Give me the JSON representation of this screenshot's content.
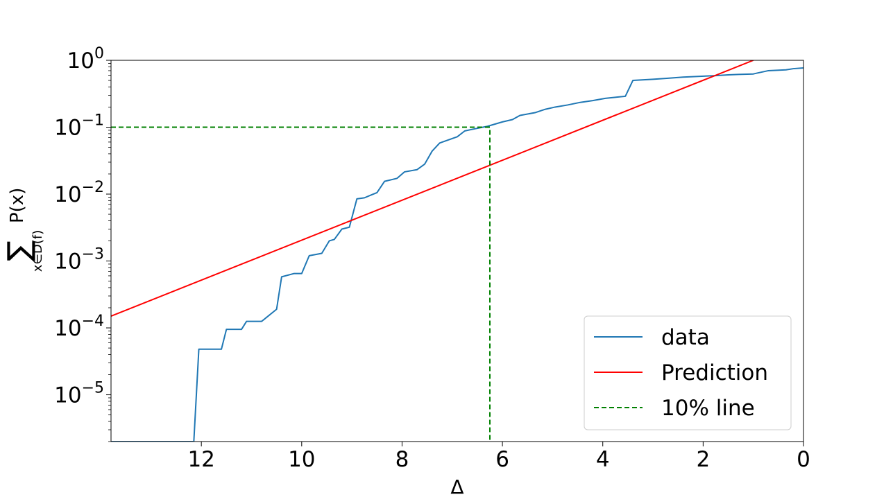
{
  "chart_data": {
    "type": "line",
    "xlabel": "Δ",
    "ylabel": {
      "sum_symbol": "∑",
      "subscript": "x∈D(f)",
      "term": "P(x)"
    },
    "xlim": [
      13.8,
      0
    ],
    "ylim": [
      2e-06,
      1
    ],
    "y_scale": "log",
    "x_ticks": [
      12,
      10,
      8,
      6,
      4,
      2,
      0
    ],
    "y_ticks": [
      {
        "value": 1,
        "base": "10",
        "exp": "0"
      },
      {
        "value": 0.1,
        "base": "10",
        "exp": "−1"
      },
      {
        "value": 0.01,
        "base": "10",
        "exp": "−2"
      },
      {
        "value": 0.001,
        "base": "10",
        "exp": "−3"
      },
      {
        "value": 0.0001,
        "base": "10",
        "exp": "−4"
      },
      {
        "value": 1e-05,
        "base": "10",
        "exp": "−5"
      }
    ],
    "grid": false,
    "legend_placement": "bottom-right",
    "series": [
      {
        "name": "data",
        "color": "#1f77b4",
        "style": "solid",
        "points": [
          [
            13.8,
            2e-06
          ],
          [
            12.15,
            2e-06
          ],
          [
            12.05,
            4.8e-05
          ],
          [
            11.6,
            4.8e-05
          ],
          [
            11.5,
            9.5e-05
          ],
          [
            11.2,
            9.5e-05
          ],
          [
            11.1,
            0.000125
          ],
          [
            10.8,
            0.000125
          ],
          [
            10.5,
            0.00019
          ],
          [
            10.4,
            0.00058
          ],
          [
            10.15,
            0.00065
          ],
          [
            10.0,
            0.00065
          ],
          [
            9.85,
            0.0012
          ],
          [
            9.6,
            0.0013
          ],
          [
            9.45,
            0.002
          ],
          [
            9.35,
            0.0021
          ],
          [
            9.2,
            0.003
          ],
          [
            9.05,
            0.0032
          ],
          [
            8.9,
            0.0085
          ],
          [
            8.75,
            0.0088
          ],
          [
            8.6,
            0.0098
          ],
          [
            8.5,
            0.0105
          ],
          [
            8.35,
            0.0155
          ],
          [
            8.1,
            0.0172
          ],
          [
            7.95,
            0.0215
          ],
          [
            7.7,
            0.0232
          ],
          [
            7.55,
            0.028
          ],
          [
            7.4,
            0.044
          ],
          [
            7.25,
            0.058
          ],
          [
            6.9,
            0.072
          ],
          [
            6.75,
            0.088
          ],
          [
            6.6,
            0.093
          ],
          [
            6.3,
            0.103
          ],
          [
            6.0,
            0.12
          ],
          [
            5.8,
            0.13
          ],
          [
            5.65,
            0.15
          ],
          [
            5.35,
            0.165
          ],
          [
            5.15,
            0.185
          ],
          [
            4.95,
            0.2
          ],
          [
            4.7,
            0.215
          ],
          [
            4.45,
            0.235
          ],
          [
            4.2,
            0.25
          ],
          [
            3.95,
            0.27
          ],
          [
            3.75,
            0.28
          ],
          [
            3.55,
            0.29
          ],
          [
            3.4,
            0.5
          ],
          [
            3.0,
            0.52
          ],
          [
            2.7,
            0.54
          ],
          [
            2.4,
            0.56
          ],
          [
            2.1,
            0.575
          ],
          [
            1.75,
            0.59
          ],
          [
            1.5,
            0.605
          ],
          [
            1.3,
            0.615
          ],
          [
            1.0,
            0.625
          ],
          [
            0.9,
            0.65
          ],
          [
            0.7,
            0.7
          ],
          [
            0.35,
            0.72
          ],
          [
            0.2,
            0.75
          ],
          [
            0.0,
            0.77
          ]
        ]
      },
      {
        "name": "Prediction",
        "color": "#ff0000",
        "style": "solid",
        "points": [
          [
            13.8,
            0.00015
          ],
          [
            1.0,
            1.0
          ]
        ]
      },
      {
        "name": "10% line",
        "color": "#008000",
        "style": "dashed",
        "points": [
          [
            13.8,
            0.1
          ],
          [
            6.25,
            0.1
          ],
          [
            6.25,
            2e-06
          ]
        ]
      }
    ]
  }
}
